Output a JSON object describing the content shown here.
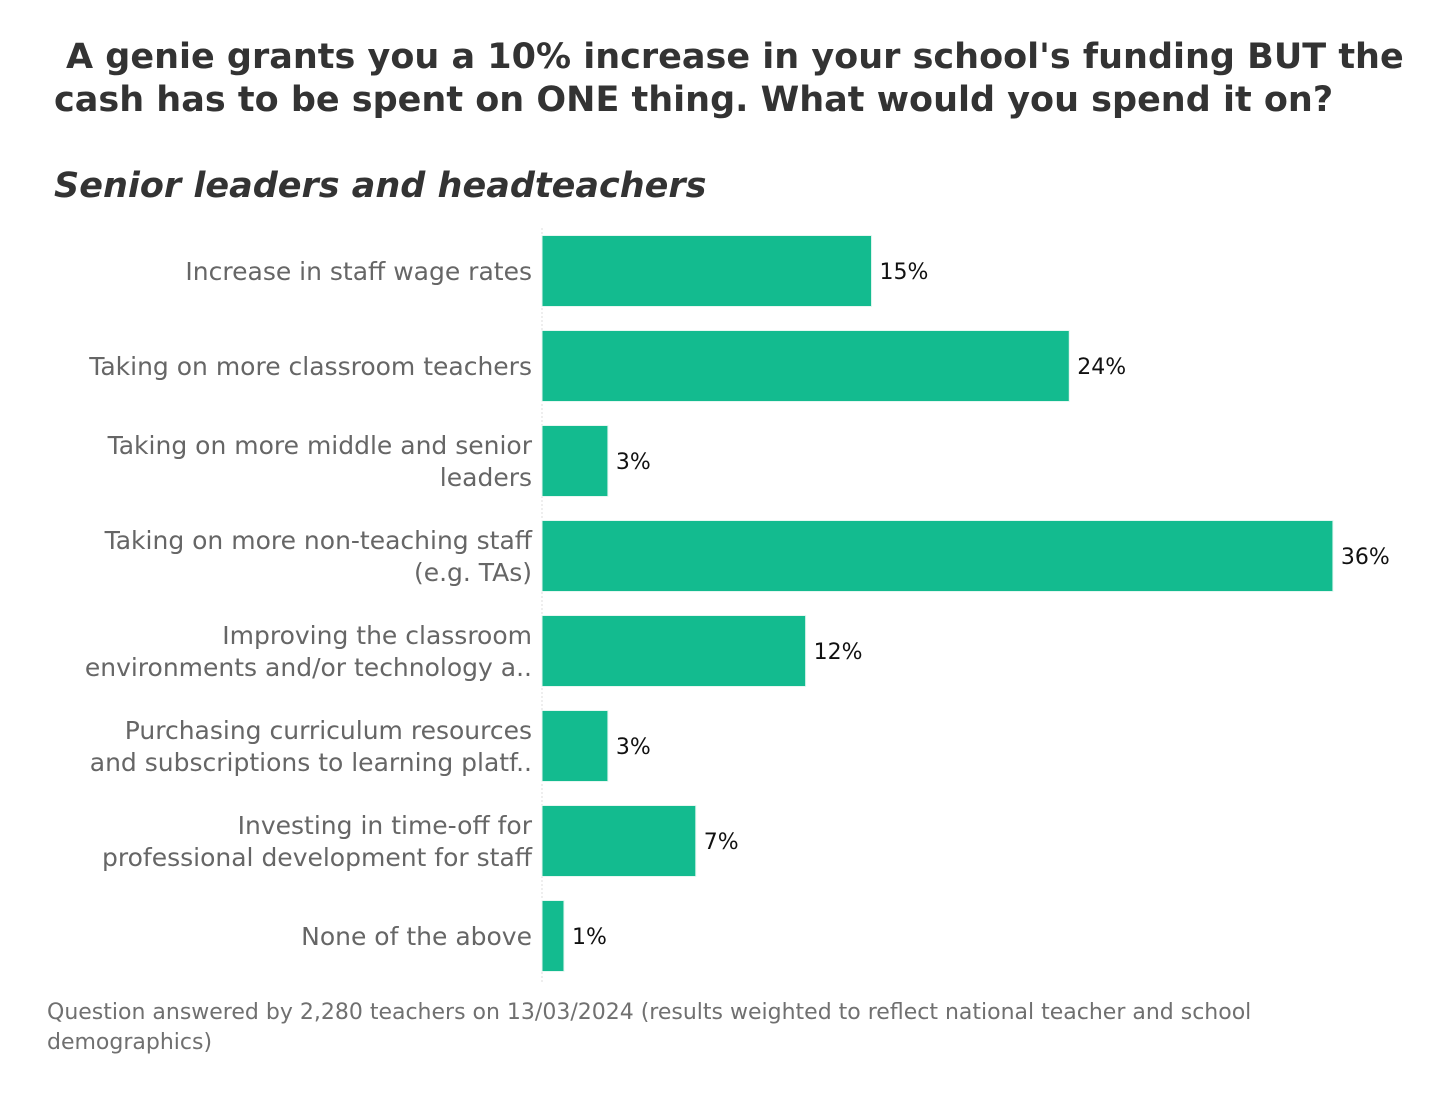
{
  "chart_data": {
    "type": "bar",
    "orientation": "horizontal",
    "title": "A genie grants you a 10% increase in your school's funding BUT the cash has to be spent on ONE thing. What would you spend it on?",
    "subtitle": "Senior leaders and headteachers",
    "categories": [
      [
        "Increase in staff wage rates"
      ],
      [
        "Taking on more classroom teachers"
      ],
      [
        "Taking on more middle and senior",
        "leaders"
      ],
      [
        "Taking on more non-teaching staff",
        "(e.g. TAs)"
      ],
      [
        "Improving the classroom",
        "environments and/or technology a.."
      ],
      [
        "Purchasing curriculum resources",
        "and subscriptions to learning platf.."
      ],
      [
        "Investing in time-off for",
        "professional development for staff"
      ],
      [
        "None of the above"
      ]
    ],
    "values": [
      15,
      24,
      3,
      36,
      12,
      3,
      7,
      1
    ],
    "value_labels": [
      "15%",
      "24%",
      "3%",
      "36%",
      "12%",
      "3%",
      "7%",
      "1%"
    ],
    "unit": "%",
    "bar_color": "#13bb8f",
    "grid": false,
    "legend": "none",
    "footnote": "Question answered by 2,280 teachers on 13/03/2024 (results weighted to reflect national teacher and school demographics)"
  }
}
